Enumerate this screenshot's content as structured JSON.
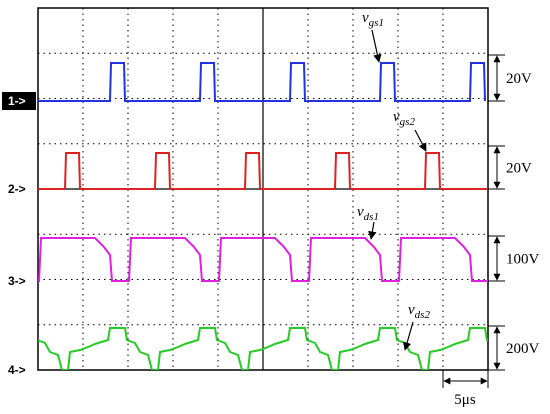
{
  "channels": [
    {
      "marker": "1->",
      "scale": "20V"
    },
    {
      "marker": "2->",
      "scale": "20V"
    },
    {
      "marker": "3->",
      "scale": "100V"
    },
    {
      "marker": "4->",
      "scale": "200V"
    }
  ],
  "annotations": [
    {
      "symbol": "v",
      "subscript": "gs1"
    },
    {
      "symbol": "v",
      "subscript": "gs2"
    },
    {
      "symbol": "v",
      "subscript": "ds1"
    },
    {
      "symbol": "v",
      "subscript": "ds2"
    }
  ],
  "time_scale": "5μs"
}
